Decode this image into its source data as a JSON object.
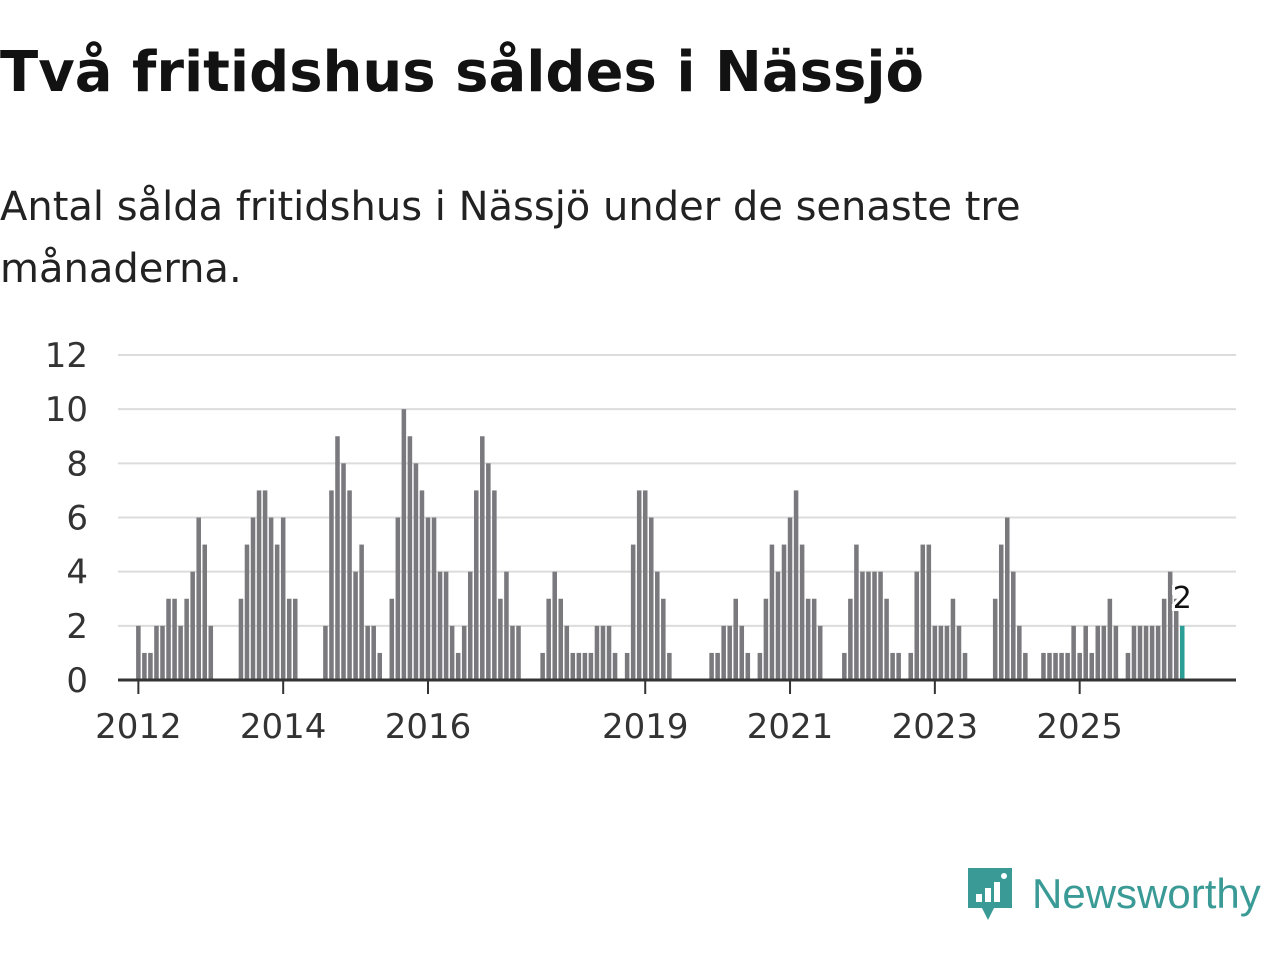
{
  "title": "Två fritidshus såldes i Nässjö",
  "subtitle": "Antal sålda fritidshus i Nässjö under de senaste tre månaderna.",
  "brand": {
    "name": "Newsworthy",
    "icon": "newsworthy-logo-icon",
    "color": "#3a9a96"
  },
  "chart_data": {
    "type": "bar",
    "title": "Två fritidshus såldes i Nässjö",
    "subtitle": "Antal sålda fritidshus i Nässjö under de senaste tre månaderna.",
    "xlabel": "",
    "ylabel": "",
    "ylim": [
      0,
      12
    ],
    "yticks": [
      0,
      2,
      4,
      6,
      8,
      10,
      12
    ],
    "grid": true,
    "bar_color": "#7a797e",
    "highlight_color": "#2a9d96",
    "start": "2011-10",
    "x_ticks": [
      "2012",
      "2014",
      "2016",
      "2019",
      "2021",
      "2023",
      "2025"
    ],
    "highlight_label": "2",
    "values": [
      0,
      0,
      0,
      2,
      1,
      1,
      2,
      2,
      3,
      3,
      2,
      3,
      4,
      6,
      5,
      2,
      0,
      0,
      0,
      0,
      3,
      5,
      6,
      7,
      7,
      6,
      5,
      6,
      3,
      3,
      0,
      0,
      0,
      0,
      2,
      7,
      9,
      8,
      7,
      4,
      5,
      2,
      2,
      1,
      0,
      3,
      6,
      10,
      9,
      8,
      7,
      6,
      6,
      4,
      4,
      2,
      1,
      2,
      4,
      7,
      9,
      8,
      7,
      3,
      4,
      2,
      2,
      0,
      0,
      0,
      1,
      3,
      4,
      3,
      2,
      1,
      1,
      1,
      1,
      2,
      2,
      2,
      1,
      0,
      1,
      5,
      7,
      7,
      6,
      4,
      3,
      1,
      0,
      0,
      0,
      0,
      0,
      0,
      1,
      1,
      2,
      2,
      3,
      2,
      1,
      0,
      1,
      3,
      5,
      4,
      5,
      6,
      7,
      5,
      3,
      3,
      2,
      0,
      0,
      0,
      1,
      3,
      5,
      4,
      4,
      4,
      4,
      3,
      1,
      1,
      0,
      1,
      4,
      5,
      5,
      2,
      2,
      2,
      3,
      2,
      1,
      0,
      0,
      0,
      0,
      3,
      5,
      6,
      4,
      2,
      1,
      0,
      0,
      1,
      1,
      1,
      1,
      1,
      2,
      1,
      2,
      1,
      2,
      2,
      3,
      2,
      0,
      1,
      2,
      2,
      2,
      2,
      2,
      3,
      4,
      3,
      2
    ]
  }
}
